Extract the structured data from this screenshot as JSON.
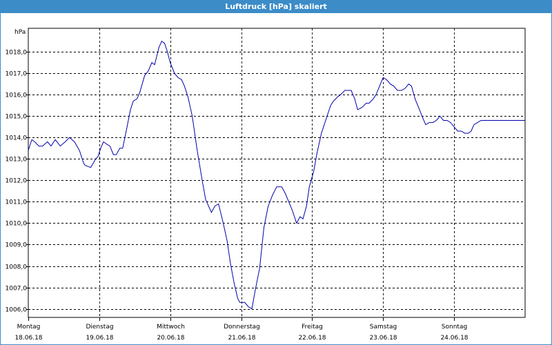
{
  "window": {
    "title": "Luftdruck [hPa] skaliert"
  },
  "chart_data": {
    "type": "line",
    "title": "Luftdruck [hPa] skaliert",
    "ylabel": "hPa",
    "xlabel": "",
    "ylim": [
      1005.6,
      1019.1
    ],
    "xlim": [
      0,
      7
    ],
    "grid": true,
    "y_ticks": [
      1006.0,
      1007.0,
      1008.0,
      1009.0,
      1010.0,
      1011.0,
      1012.0,
      1013.0,
      1014.0,
      1015.0,
      1016.0,
      1017.0,
      1018.0
    ],
    "y_tick_labels": [
      "1006,0",
      "1007,0",
      "1008,0",
      "1009,0",
      "1010,0",
      "1011,0",
      "1012,0",
      "1013,0",
      "1014,0",
      "1015,0",
      "1016,0",
      "1017,0",
      "1018,0"
    ],
    "x_ticks": [
      {
        "day": "Montag",
        "date": "18.06.18"
      },
      {
        "day": "Dienstag",
        "date": "19.06.18"
      },
      {
        "day": "Mittwoch",
        "date": "20.06.18"
      },
      {
        "day": "Donnerstag",
        "date": "21.06.18"
      },
      {
        "day": "Freitag",
        "date": "22.06.18"
      },
      {
        "day": "Samstag",
        "date": "23.06.18"
      },
      {
        "day": "Sonntag",
        "date": "24.06.18"
      }
    ],
    "series": [
      {
        "color": "#0000aa",
        "x": [
          0,
          0.05,
          0.09,
          0.15,
          0.2,
          0.27,
          0.32,
          0.38,
          0.45,
          0.52,
          0.58,
          0.65,
          0.72,
          0.78,
          0.8,
          0.88,
          0.95,
          0.98,
          1.02,
          1.06,
          1.1,
          1.15,
          1.2,
          1.24,
          1.29,
          1.33,
          1.38,
          1.44,
          1.48,
          1.53,
          1.57,
          1.64,
          1.69,
          1.74,
          1.78,
          1.84,
          1.88,
          1.92,
          1.96,
          2.0,
          2.06,
          2.11,
          2.16,
          2.2,
          2.25,
          2.31,
          2.38,
          2.45,
          2.5,
          2.58,
          2.63,
          2.68,
          2.74,
          2.8,
          2.85,
          2.9,
          2.95,
          2.98,
          3.05,
          3.1,
          3.15,
          3.2,
          3.26,
          3.32,
          3.38,
          3.44,
          3.5,
          3.53,
          3.57,
          3.62,
          3.67,
          3.72,
          3.78,
          3.83,
          3.87,
          3.92,
          3.96,
          4.02,
          4.07,
          4.13,
          4.2,
          4.26,
          4.3,
          4.36,
          4.4,
          4.46,
          4.5,
          4.55,
          4.6,
          4.64,
          4.7,
          4.76,
          4.8,
          4.86,
          4.9,
          4.95,
          5.0,
          5.05,
          5.1,
          5.15,
          5.2,
          5.26,
          5.31,
          5.36,
          5.4,
          5.45,
          5.5,
          5.56,
          5.6,
          5.65,
          5.7,
          5.75,
          5.8,
          5.85,
          5.9,
          5.95,
          6.0,
          6.05,
          6.1,
          6.15,
          6.2,
          6.24,
          6.28,
          6.33,
          6.38,
          6.43,
          6.48,
          6.53,
          6.57,
          6.62,
          6.66,
          6.72,
          6.77,
          6.8,
          6.85,
          6.9,
          6.95,
          7.0
        ],
        "y": [
          1013.4,
          1013.9,
          1013.8,
          1013.6,
          1013.6,
          1013.8,
          1013.6,
          1013.9,
          1013.6,
          1013.8,
          1014.0,
          1013.8,
          1013.4,
          1012.8,
          1012.7,
          1012.6,
          1013.0,
          1013.1,
          1013.5,
          1013.8,
          1013.7,
          1013.6,
          1013.2,
          1013.2,
          1013.5,
          1013.5,
          1014.3,
          1015.3,
          1015.7,
          1015.8,
          1016.1,
          1016.9,
          1017.1,
          1017.5,
          1017.4,
          1018.2,
          1018.5,
          1018.4,
          1018.0,
          1017.5,
          1017.0,
          1016.8,
          1016.7,
          1016.4,
          1015.9,
          1015.0,
          1013.4,
          1012.0,
          1011.1,
          1010.5,
          1010.8,
          1010.9,
          1010.1,
          1009.2,
          1008.1,
          1007.2,
          1006.5,
          1006.3,
          1006.3,
          1006.1,
          1006.0,
          1006.9,
          1007.9,
          1009.8,
          1010.8,
          1011.3,
          1011.7,
          1011.7,
          1011.7,
          1011.4,
          1011.0,
          1010.6,
          1010.0,
          1010.3,
          1010.2,
          1010.8,
          1011.7,
          1012.4,
          1013.3,
          1014.2,
          1014.9,
          1015.5,
          1015.7,
          1015.9,
          1016.0,
          1016.2,
          1016.2,
          1016.2,
          1015.8,
          1015.3,
          1015.4,
          1015.6,
          1015.6,
          1015.8,
          1016.0,
          1016.4,
          1016.8,
          1016.7,
          1016.5,
          1016.4,
          1016.2,
          1016.2,
          1016.3,
          1016.5,
          1016.4,
          1015.8,
          1015.4,
          1014.9,
          1014.6,
          1014.7,
          1014.7,
          1014.8,
          1015.0,
          1014.8,
          1014.8,
          1014.7,
          1014.5,
          1014.3,
          1014.3,
          1014.2,
          1014.2,
          1014.3,
          1014.6,
          1014.7,
          1014.8,
          1014.8,
          1014.8,
          1014.8,
          1014.8,
          1014.8,
          1014.8,
          1014.8,
          1014.8,
          1014.8,
          1014.8,
          1014.8,
          1014.8,
          1014.8
        ]
      }
    ]
  }
}
